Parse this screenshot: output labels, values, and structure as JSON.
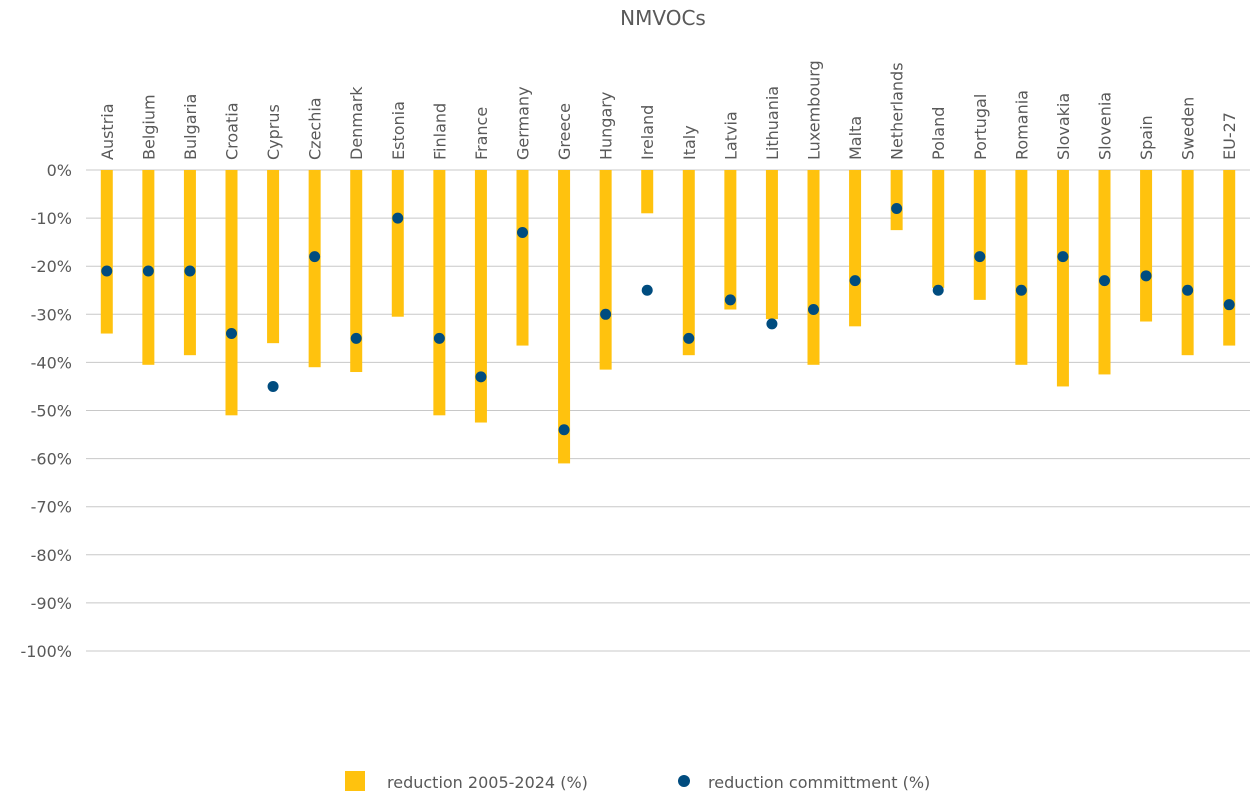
{
  "chart_data": {
    "type": "bar",
    "title": "NMVOCs",
    "categories": [
      "Austria",
      "Belgium",
      "Bulgaria",
      "Croatia",
      "Cyprus",
      "Czechia",
      "Denmark",
      "Estonia",
      "Finland",
      "France",
      "Germany",
      "Greece",
      "Hungary",
      "Ireland",
      "Italy",
      "Latvia",
      "Lithuania",
      "Luxembourg",
      "Malta",
      "Netherlands",
      "Poland",
      "Portugal",
      "Romania",
      "Slovakia",
      "Slovenia",
      "Spain",
      "Sweden",
      "EU-27"
    ],
    "series": [
      {
        "name": "reduction 2005-2024 (%)",
        "type": "bar",
        "color": "#FFC20E",
        "values": [
          -34,
          -40.5,
          -38.5,
          -51,
          -36,
          -41,
          -42,
          -30.5,
          -51,
          -52.5,
          -36.5,
          -61,
          -41.5,
          -9,
          -38.5,
          -29,
          -31,
          -40.5,
          -32.5,
          -12.5,
          -24.5,
          -27,
          -40.5,
          -45,
          -42.5,
          -31.5,
          -38.5,
          -36.5
        ]
      },
      {
        "name": "reduction committment (%)",
        "type": "scatter",
        "color": "#004C7F",
        "values": [
          -21,
          -21,
          -21,
          -34,
          -45,
          -18,
          -35,
          -10,
          -35,
          -43,
          -13,
          -54,
          -30,
          -25,
          -35,
          -27,
          -32,
          -29,
          -23,
          -8,
          -25,
          -18,
          -25,
          -18,
          -23,
          -22,
          -25,
          -28
        ]
      }
    ],
    "ylim": [
      -100,
      0
    ],
    "yticks": [
      0,
      -10,
      -20,
      -30,
      -40,
      -50,
      -60,
      -70,
      -80,
      -90,
      -100
    ],
    "ytick_labels": [
      "0%",
      "-10%",
      "-20%",
      "-30%",
      "-40%",
      "-50%",
      "-60%",
      "-70%",
      "-80%",
      "-90%",
      "-100%"
    ],
    "grid": true,
    "legend_position": "bottom"
  }
}
